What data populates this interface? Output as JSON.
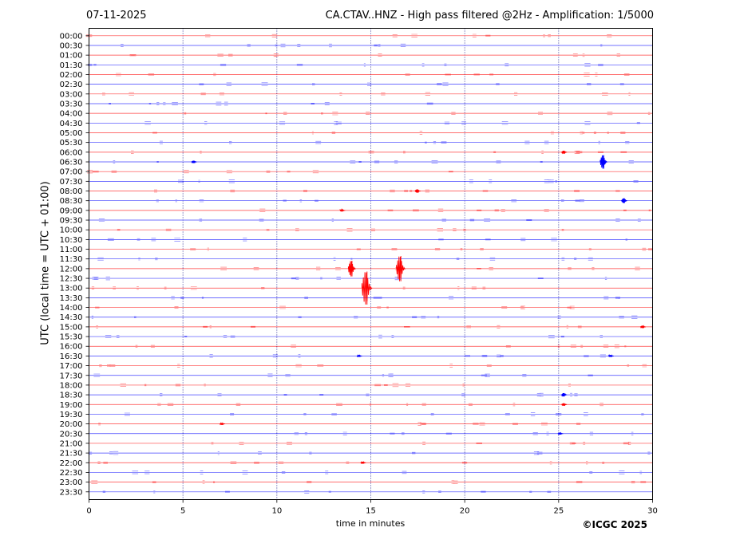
{
  "header": {
    "date": "07-11-2025",
    "title": "CA.CTAV..HNZ - High pass filtered @2Hz - Amplification: 1/5000"
  },
  "footer": {
    "copyright": "©ICGC 2025"
  },
  "colors": {
    "trace_a": "#ff0000",
    "trace_b": "#0000ff",
    "grid": "#000080"
  },
  "chart_data": {
    "type": "line",
    "xlabel": "time in minutes",
    "ylabel": "UTC (local time = UTC + 01:00)",
    "xlim": [
      0,
      30
    ],
    "x_ticks": [
      0,
      5,
      10,
      15,
      20,
      25,
      30
    ],
    "vertical_grid": [
      5,
      10,
      15,
      20,
      25
    ],
    "row_colors": [
      "red",
      "blue"
    ],
    "rows": [
      "00:00",
      "00:30",
      "01:00",
      "01:30",
      "02:00",
      "02:30",
      "03:00",
      "03:30",
      "04:00",
      "04:30",
      "05:00",
      "05:30",
      "06:00",
      "06:30",
      "07:00",
      "07:30",
      "08:00",
      "08:30",
      "09:00",
      "09:30",
      "10:00",
      "10:30",
      "11:00",
      "11:30",
      "12:00",
      "12:30",
      "13:00",
      "13:30",
      "14:00",
      "14:30",
      "15:00",
      "15:30",
      "16:00",
      "16:30",
      "17:00",
      "17:30",
      "18:00",
      "18:30",
      "19:00",
      "19:30",
      "20:00",
      "20:30",
      "21:00",
      "21:30",
      "22:00",
      "22:30",
      "23:00",
      "23:30"
    ],
    "events": [
      {
        "row": "06:00",
        "minute": 25.3,
        "amplitude": 0.3
      },
      {
        "row": "06:30",
        "minute": 5.6,
        "amplitude": 0.25
      },
      {
        "row": "06:30",
        "minute": 27.4,
        "amplitude": 1.4
      },
      {
        "row": "08:00",
        "minute": 17.5,
        "amplitude": 0.35
      },
      {
        "row": "08:30",
        "minute": 28.5,
        "amplitude": 0.5
      },
      {
        "row": "09:00",
        "minute": 13.5,
        "amplitude": 0.15
      },
      {
        "row": "12:00",
        "minute": 14.0,
        "amplitude": 1.6
      },
      {
        "row": "12:00",
        "minute": 16.6,
        "amplitude": 2.6
      },
      {
        "row": "13:00",
        "minute": 14.8,
        "amplitude": 3.4
      },
      {
        "row": "15:00",
        "minute": 29.5,
        "amplitude": 0.25
      },
      {
        "row": "16:30",
        "minute": 14.4,
        "amplitude": 0.2
      },
      {
        "row": "16:30",
        "minute": 27.8,
        "amplitude": 0.2
      },
      {
        "row": "18:30",
        "minute": 25.3,
        "amplitude": 0.35
      },
      {
        "row": "19:00",
        "minute": 25.3,
        "amplitude": 0.25
      },
      {
        "row": "20:00",
        "minute": 7.1,
        "amplitude": 0.2
      },
      {
        "row": "20:30",
        "minute": 25.1,
        "amplitude": 0.2
      },
      {
        "row": "22:00",
        "minute": 14.6,
        "amplitude": 0.2
      }
    ]
  }
}
